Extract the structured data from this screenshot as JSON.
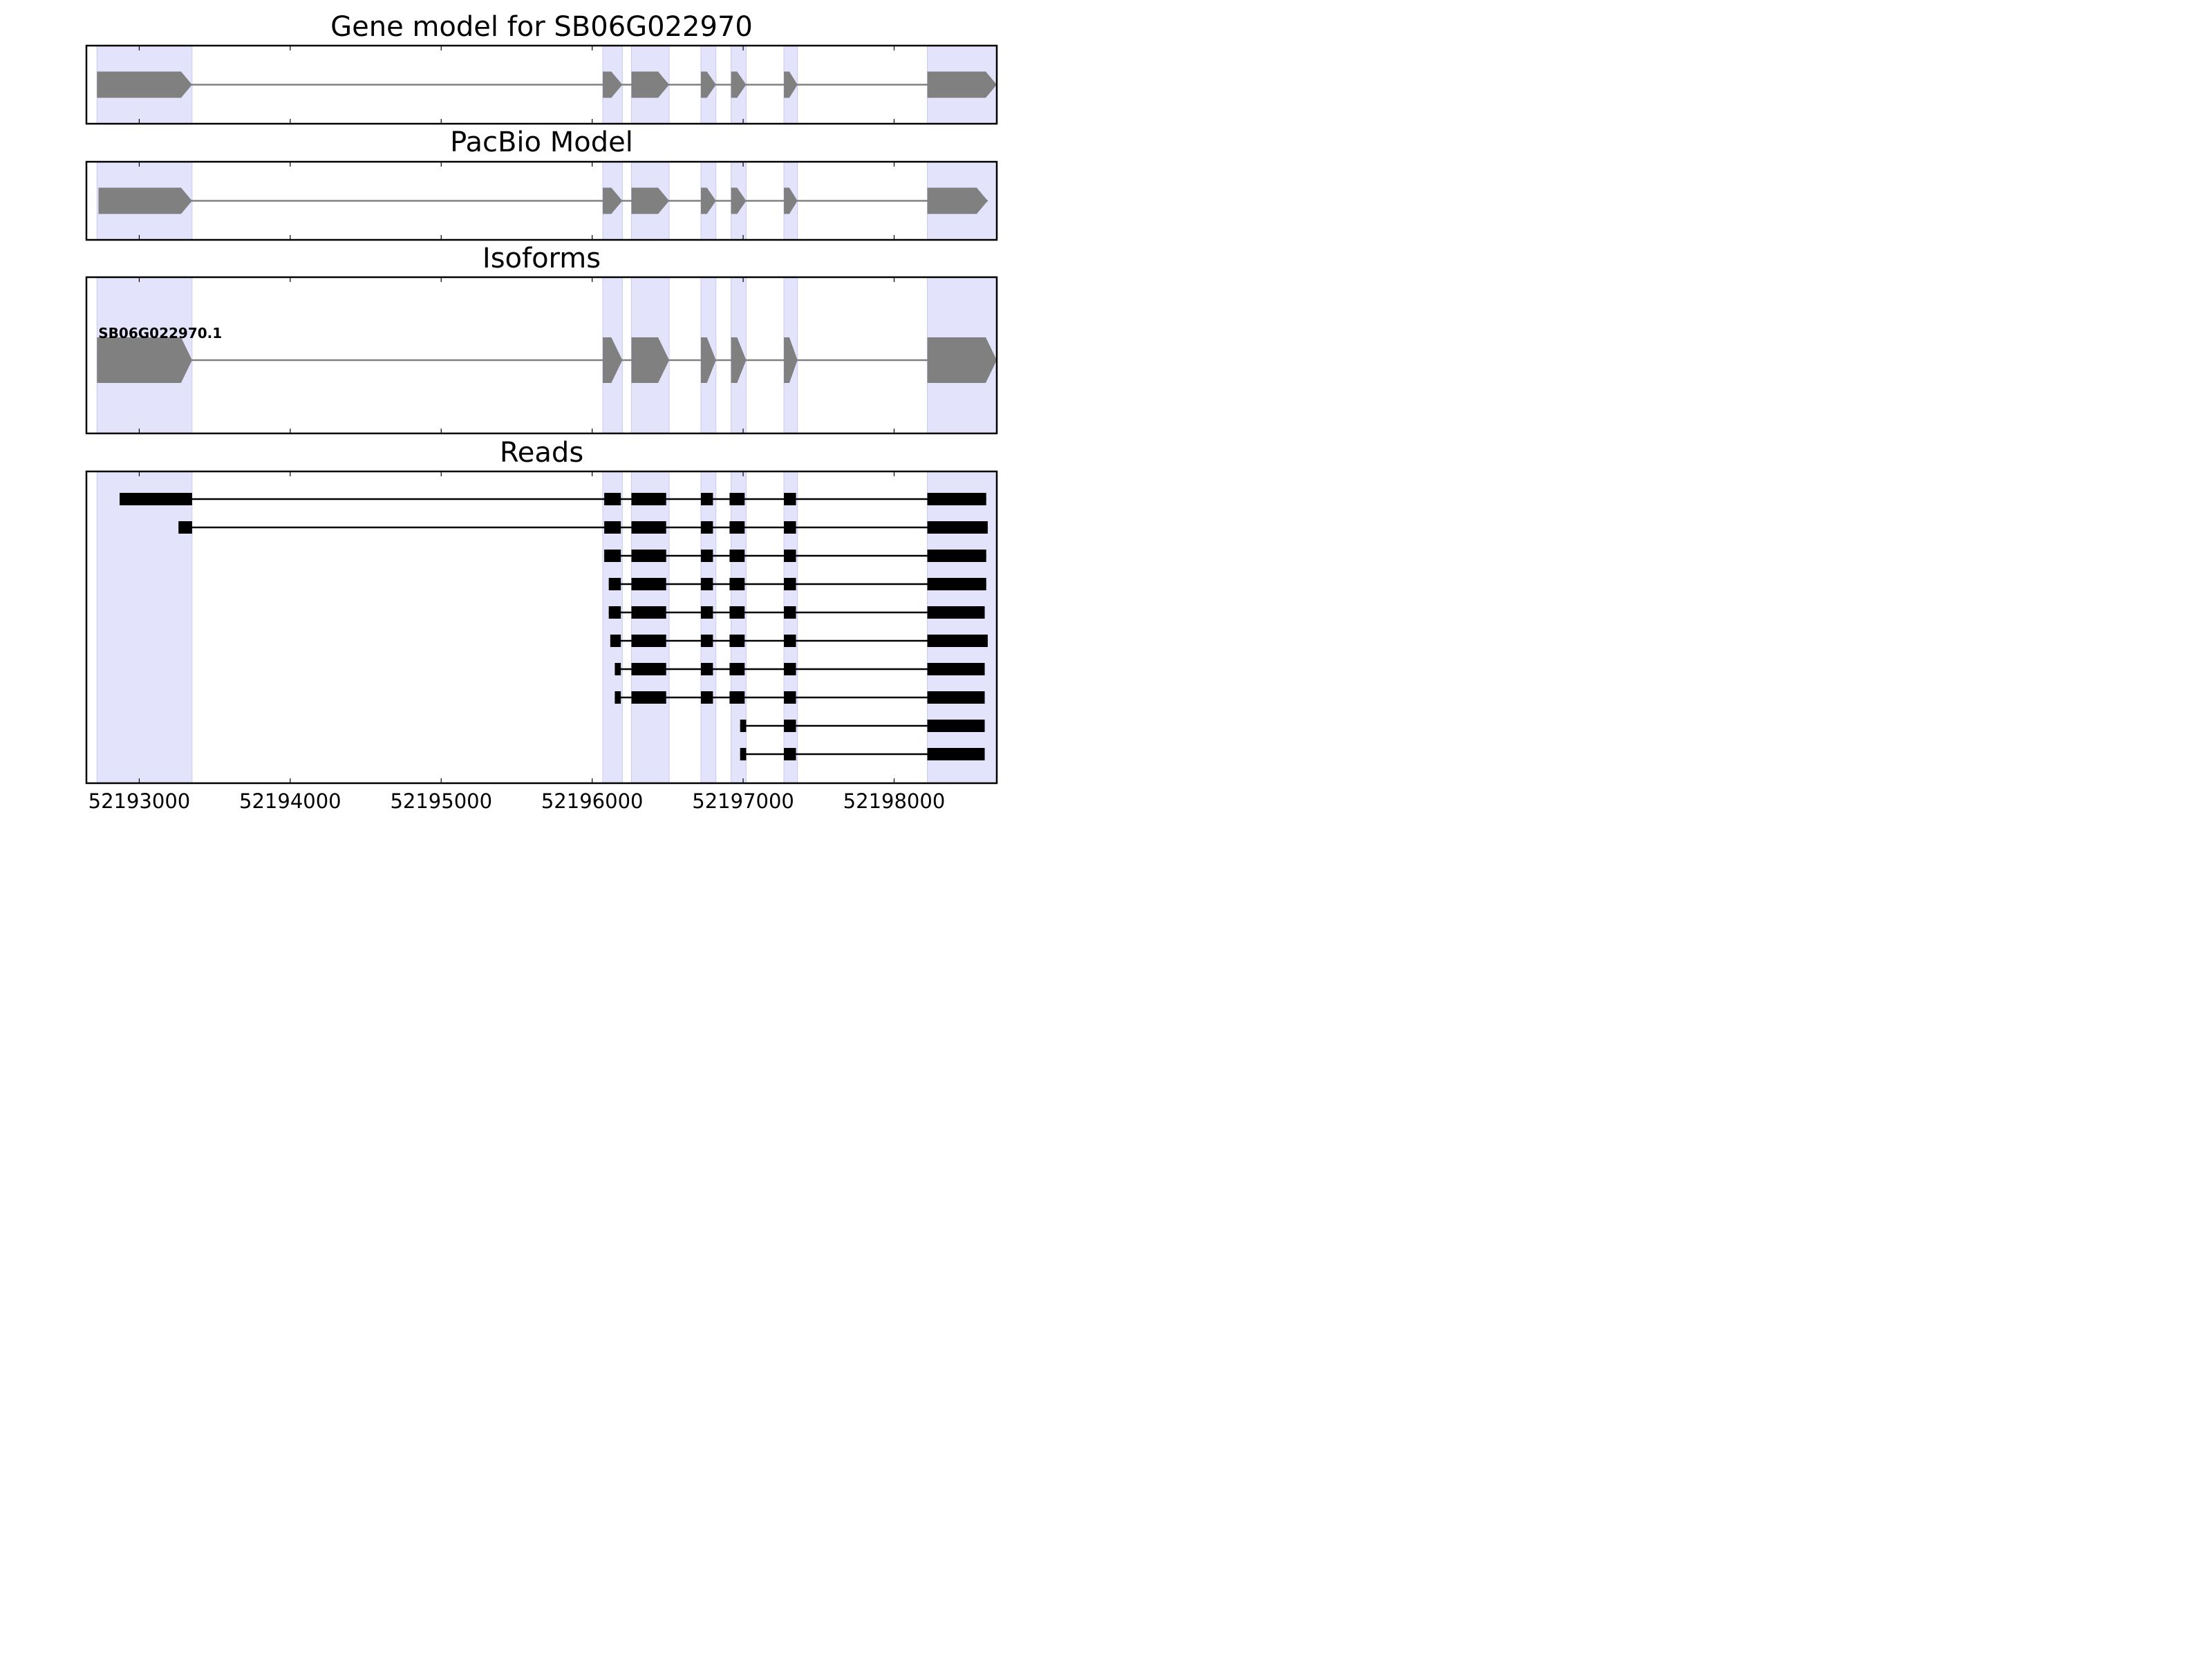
{
  "chart_data": [
    {
      "type": "gene-track",
      "title": "Gene model for SB06G022970",
      "xlim": [
        52192650,
        52198680
      ],
      "shading": "exon-highlight",
      "features": [
        {
          "kind": "exons",
          "strand": "+",
          "exons": [
            [
              52192720,
              52193350
            ],
            [
              52196070,
              52196200
            ],
            [
              52196260,
              52196510
            ],
            [
              52196720,
              52196820
            ],
            [
              52196920,
              52197020
            ],
            [
              52197270,
              52197360
            ],
            [
              52198220,
              52198680
            ]
          ]
        }
      ]
    },
    {
      "type": "gene-track",
      "title": "PacBio Model",
      "xlim": [
        52192650,
        52198680
      ],
      "features": [
        {
          "kind": "exons",
          "strand": "+",
          "exons": [
            [
              52192730,
              52193350
            ],
            [
              52196070,
              52196200
            ],
            [
              52196260,
              52196510
            ],
            [
              52196720,
              52196820
            ],
            [
              52196920,
              52197020
            ],
            [
              52197270,
              52197360
            ],
            [
              52198220,
              52198620
            ]
          ]
        }
      ]
    },
    {
      "type": "gene-track",
      "title": "Isoforms",
      "xlim": [
        52192650,
        52198680
      ],
      "features": [
        {
          "kind": "exons",
          "strand": "+",
          "name": "SB06G022970.1",
          "exons": [
            [
              52192720,
              52193350
            ],
            [
              52196070,
              52196200
            ],
            [
              52196260,
              52196510
            ],
            [
              52196720,
              52196820
            ],
            [
              52196920,
              52197020
            ],
            [
              52197270,
              52197360
            ],
            [
              52198220,
              52198680
            ]
          ]
        }
      ]
    },
    {
      "type": "read-track",
      "title": "Reads",
      "xlim": [
        52192650,
        52198680
      ],
      "xticks": [
        "52193000",
        "52194000",
        "52195000",
        "52196000",
        "52197000",
        "52198000"
      ],
      "reads": [
        [
          [
            52192870,
            52193350
          ],
          [
            52196080,
            52196190
          ],
          [
            52196260,
            52196490
          ],
          [
            52196720,
            52196800
          ],
          [
            52196910,
            52197010
          ],
          [
            52197270,
            52197350
          ],
          [
            52198220,
            52198610
          ]
        ],
        [
          [
            52193260,
            52193350
          ],
          [
            52196080,
            52196190
          ],
          [
            52196260,
            52196490
          ],
          [
            52196720,
            52196800
          ],
          [
            52196910,
            52197010
          ],
          [
            52197270,
            52197350
          ],
          [
            52198220,
            52198620
          ]
        ],
        [
          [
            52196080,
            52196190
          ],
          [
            52196260,
            52196490
          ],
          [
            52196720,
            52196800
          ],
          [
            52196910,
            52197010
          ],
          [
            52197270,
            52197350
          ],
          [
            52198220,
            52198610
          ]
        ],
        [
          [
            52196110,
            52196190
          ],
          [
            52196260,
            52196490
          ],
          [
            52196720,
            52196800
          ],
          [
            52196910,
            52197010
          ],
          [
            52197270,
            52197350
          ],
          [
            52198220,
            52198610
          ]
        ],
        [
          [
            52196110,
            52196190
          ],
          [
            52196260,
            52196490
          ],
          [
            52196720,
            52196800
          ],
          [
            52196910,
            52197010
          ],
          [
            52197270,
            52197350
          ],
          [
            52198220,
            52198600
          ]
        ],
        [
          [
            52196120,
            52196190
          ],
          [
            52196260,
            52196490
          ],
          [
            52196720,
            52196800
          ],
          [
            52196910,
            52197010
          ],
          [
            52197270,
            52197350
          ],
          [
            52198220,
            52198620
          ]
        ],
        [
          [
            52196150,
            52196190
          ],
          [
            52196260,
            52196490
          ],
          [
            52196720,
            52196800
          ],
          [
            52196910,
            52197010
          ],
          [
            52197270,
            52197350
          ],
          [
            52198220,
            52198600
          ]
        ],
        [
          [
            52196150,
            52196190
          ],
          [
            52196260,
            52196490
          ],
          [
            52196720,
            52196800
          ],
          [
            52196910,
            52197010
          ],
          [
            52197270,
            52197350
          ],
          [
            52198220,
            52198600
          ]
        ],
        [
          [
            52196980,
            52197020
          ],
          [
            52197270,
            52197350
          ],
          [
            52198220,
            52198600
          ]
        ],
        [
          [
            52196980,
            52197020
          ],
          [
            52197270,
            52197350
          ],
          [
            52198220,
            52198600
          ]
        ]
      ]
    }
  ],
  "colors": {
    "highlight": "#e3e3fb",
    "highlight_edge": "#c9c9ee",
    "model": "#808080",
    "read": "#000000",
    "frame": "#000000"
  }
}
